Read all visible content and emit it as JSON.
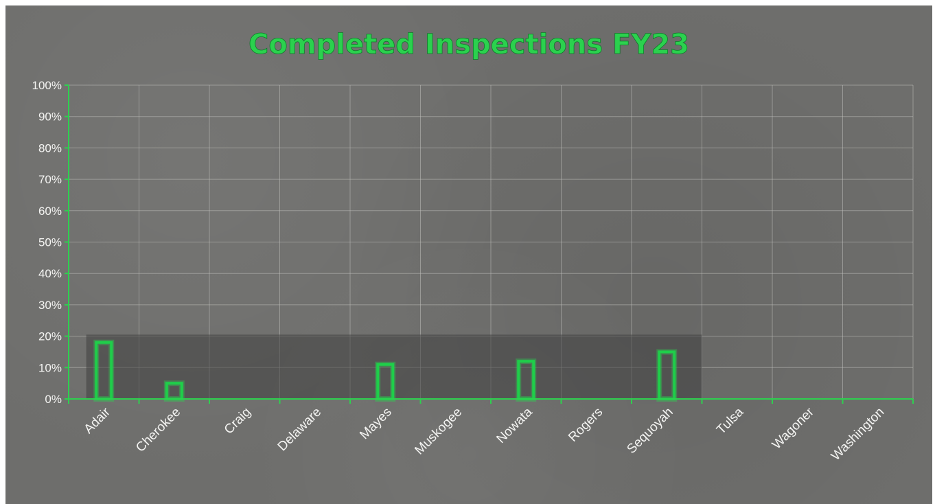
{
  "chart_data": {
    "type": "bar",
    "title": "Completed Inspections FY23",
    "xlabel": "",
    "ylabel": "",
    "categories": [
      "Adair",
      "Cherokee",
      "Craig",
      "Delaware",
      "Mayes",
      "Muskogee",
      "Nowata",
      "Rogers",
      "Sequoyah",
      "Tulsa",
      "Wagoner",
      "Washington"
    ],
    "values": [
      18,
      5,
      0,
      0,
      11,
      0,
      12,
      0,
      15,
      0,
      0,
      0
    ],
    "value_unit": "%",
    "ylim": [
      0,
      100
    ],
    "yticks": [
      "0%",
      "10%",
      "20%",
      "30%",
      "40%",
      "50%",
      "60%",
      "70%",
      "80%",
      "90%",
      "100%"
    ],
    "grid": true,
    "legend": "none",
    "bar_style": "outline",
    "colors": {
      "background": "#6e6e6c",
      "bar_outline": "#1fce4a",
      "axis": "#2ed04f",
      "title": "#2bd14e",
      "tick_label": "#f4f4f2",
      "grid": "#bebeb9",
      "shaded_band": "#3f3f3f"
    }
  }
}
